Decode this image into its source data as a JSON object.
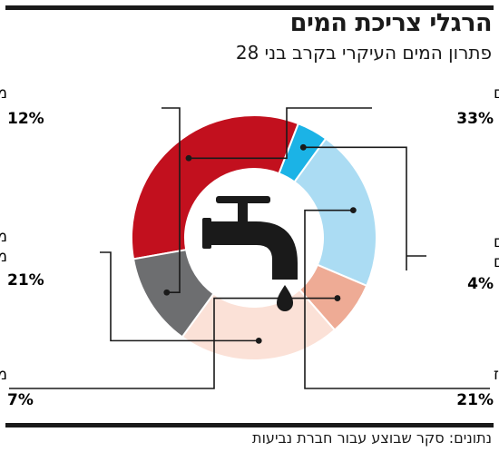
{
  "header": {
    "title": "הרגלי צריכת המים",
    "subtitle": "פתרון המים העיקרי בקרב בני 28"
  },
  "footer": {
    "source": "נתונים: סקר שבוצע עבור חברת נביעות"
  },
  "icon": "water-faucet-icon",
  "chart_data": {
    "type": "pie",
    "donut": true,
    "title": "הרגלי צריכת המים",
    "subtitle": "פתרון המים העיקרי בקרב בני 28",
    "unit": "%",
    "slices": [
      {
        "label": "בר מים מסוננים",
        "value": 33,
        "value_label": "33%",
        "color": "#c2101e"
      },
      {
        "label": "בר מים מינרליים",
        "value": 4,
        "value_label": "4%",
        "color": "#1bb3e6"
      },
      {
        "label": "מי ברז",
        "value": 21,
        "value_label": "21%",
        "color": "#abdcf3"
      },
      {
        "label": "מים מקנקן לסינון מים",
        "value": 7,
        "value_label": "7%",
        "color": "#eeab95"
      },
      {
        "label": "מים מינרליים מבקבוקים",
        "value": 21,
        "value_label": "21%",
        "color": "#fbe1d7"
      },
      {
        "label": "מסנן מורכב על הברז",
        "value": 12,
        "value_label": "12%",
        "color": "#6d6e70"
      }
    ]
  }
}
